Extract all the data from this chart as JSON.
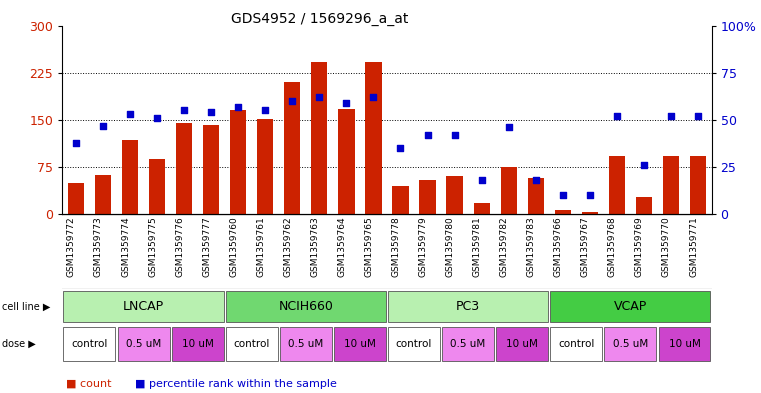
{
  "title": "GDS4952 / 1569296_a_at",
  "samples": [
    "GSM1359772",
    "GSM1359773",
    "GSM1359774",
    "GSM1359775",
    "GSM1359776",
    "GSM1359777",
    "GSM1359760",
    "GSM1359761",
    "GSM1359762",
    "GSM1359763",
    "GSM1359764",
    "GSM1359765",
    "GSM1359778",
    "GSM1359779",
    "GSM1359780",
    "GSM1359781",
    "GSM1359782",
    "GSM1359783",
    "GSM1359766",
    "GSM1359767",
    "GSM1359768",
    "GSM1359769",
    "GSM1359770",
    "GSM1359771"
  ],
  "counts": [
    50,
    62,
    118,
    88,
    145,
    142,
    165,
    152,
    210,
    242,
    168,
    242,
    45,
    55,
    60,
    18,
    75,
    58,
    7,
    4,
    92,
    28,
    92,
    92
  ],
  "percentiles": [
    38,
    47,
    53,
    51,
    55,
    54,
    57,
    55,
    60,
    62,
    59,
    62,
    35,
    42,
    42,
    18,
    46,
    18,
    10,
    10,
    52,
    26,
    52,
    52
  ],
  "cell_lines": [
    {
      "name": "LNCAP",
      "start": 0,
      "end": 6,
      "color": "#b8f0b0"
    },
    {
      "name": "NCIH660",
      "start": 6,
      "end": 12,
      "color": "#70d870"
    },
    {
      "name": "PC3",
      "start": 12,
      "end": 18,
      "color": "#b8f0b0"
    },
    {
      "name": "VCAP",
      "start": 18,
      "end": 24,
      "color": "#44cc44"
    }
  ],
  "doses": [
    {
      "label": "control",
      "start": 0,
      "end": 2,
      "color": "#ffffff"
    },
    {
      "label": "0.5 uM",
      "start": 2,
      "end": 4,
      "color": "#ee88ee"
    },
    {
      "label": "10 uM",
      "start": 4,
      "end": 6,
      "color": "#cc44cc"
    },
    {
      "label": "control",
      "start": 6,
      "end": 8,
      "color": "#ffffff"
    },
    {
      "label": "0.5 uM",
      "start": 8,
      "end": 10,
      "color": "#ee88ee"
    },
    {
      "label": "10 uM",
      "start": 10,
      "end": 12,
      "color": "#cc44cc"
    },
    {
      "label": "control",
      "start": 12,
      "end": 14,
      "color": "#ffffff"
    },
    {
      "label": "0.5 uM",
      "start": 14,
      "end": 16,
      "color": "#ee88ee"
    },
    {
      "label": "10 uM",
      "start": 16,
      "end": 18,
      "color": "#cc44cc"
    },
    {
      "label": "control",
      "start": 18,
      "end": 20,
      "color": "#ffffff"
    },
    {
      "label": "0.5 uM",
      "start": 20,
      "end": 22,
      "color": "#ee88ee"
    },
    {
      "label": "10 uM",
      "start": 22,
      "end": 24,
      "color": "#cc44cc"
    }
  ],
  "bar_color": "#cc2200",
  "dot_color": "#0000cc",
  "left_ylim": [
    0,
    300
  ],
  "left_yticks": [
    0,
    75,
    150,
    225,
    300
  ],
  "right_ylim": [
    0,
    100
  ],
  "right_yticks": [
    0,
    25,
    50,
    75,
    100
  ],
  "left_ylabel_color": "#cc2200",
  "right_ylabel_color": "#0000cc",
  "bg_color": "#ffffff",
  "xtick_bg_color": "#c8c8c8",
  "cell_line_bg": "#c8c8c8",
  "dose_bg": "#c8c8c8"
}
